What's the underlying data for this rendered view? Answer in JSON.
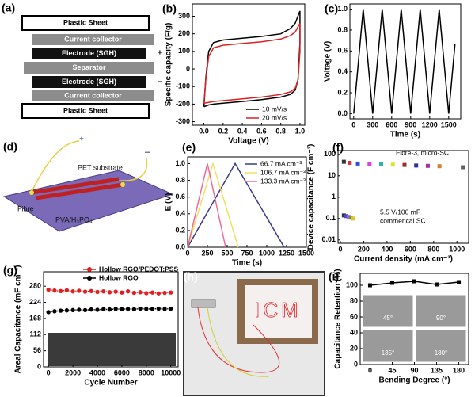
{
  "chart_data": [
    {
      "type": "line",
      "label": "(b)",
      "xlabel": "Voltage (V)",
      "ylabel": "Specific capacity (F/g)",
      "xlim": [
        -0.12,
        1.05
      ],
      "ylim": [
        -320,
        370
      ],
      "xticks": [
        {
          "value": 0,
          "label": "0.0"
        },
        {
          "value": 0.2,
          "label": "0.2"
        },
        {
          "value": 0.4,
          "label": "0.4"
        },
        {
          "value": 0.6,
          "label": "0.6"
        },
        {
          "value": 0.8,
          "label": "0.8"
        },
        {
          "value": 1,
          "label": "1.0"
        }
      ],
      "yticks": [
        -300,
        -200,
        -100,
        0,
        100,
        200,
        300
      ],
      "legend": "lower right",
      "series": [
        {
          "name": "10 mV/s",
          "color": "#000000",
          "x": [
            0,
            0.02,
            0.05,
            0.1,
            0.2,
            0.4,
            0.6,
            0.8,
            0.9,
            0.95,
            1.0,
            1.0,
            0.98,
            0.95,
            0.9,
            0.8,
            0.6,
            0.4,
            0.2,
            0.1,
            0.05,
            0
          ],
          "values": [
            -215,
            -50,
            100,
            150,
            165,
            175,
            185,
            200,
            230,
            260,
            330,
            150,
            -60,
            -120,
            -145,
            -160,
            -175,
            -185,
            -195,
            -200,
            -205,
            -215
          ]
        },
        {
          "name": "20 mV/s",
          "color": "#e02020",
          "x": [
            0,
            0.02,
            0.05,
            0.1,
            0.2,
            0.4,
            0.6,
            0.8,
            0.9,
            0.95,
            1.0,
            1.0,
            0.98,
            0.95,
            0.9,
            0.8,
            0.6,
            0.4,
            0.2,
            0.1,
            0.05,
            0
          ],
          "values": [
            -195,
            -60,
            70,
            120,
            135,
            145,
            155,
            170,
            190,
            210,
            260,
            100,
            -60,
            -110,
            -130,
            -145,
            -160,
            -170,
            -180,
            -185,
            -190,
            -195
          ]
        }
      ]
    },
    {
      "type": "line",
      "label": "(c)",
      "xlabel": "Time (s)",
      "ylabel": "Voltage (V)",
      "xlim": [
        -60,
        1690
      ],
      "ylim": [
        -0.05,
        1.05
      ],
      "xticks": [
        0,
        300,
        600,
        900,
        1200,
        1500
      ],
      "yticks": [
        {
          "value": 0,
          "label": "0.0"
        },
        {
          "value": 0.2,
          "label": "0.2"
        },
        {
          "value": 0.4,
          "label": "0.4"
        },
        {
          "value": 0.6,
          "label": "0.6"
        },
        {
          "value": 0.8,
          "label": "0.8"
        },
        {
          "value": 1,
          "label": "1.0"
        }
      ],
      "series": [
        {
          "color": "#000000",
          "x": [
            0,
            150,
            300,
            450,
            600,
            750,
            900,
            1050,
            1200,
            1350,
            1500,
            1600
          ],
          "values": [
            0,
            1,
            0,
            1,
            0,
            1,
            0,
            1,
            0,
            1,
            0,
            0.67
          ]
        }
      ]
    },
    {
      "type": "line",
      "label": "(e)",
      "xlabel": "Time (s)",
      "ylabel": "E (V)",
      "xlim": [
        0,
        1500
      ],
      "ylim": [
        0,
        1.08
      ],
      "xticks": [
        0,
        250,
        500,
        750,
        1000,
        1250,
        1500
      ],
      "yticks": [
        {
          "value": 0,
          "label": "0.0"
        },
        {
          "value": 0.2,
          "label": "0.2"
        },
        {
          "value": 0.4,
          "label": "0.4"
        },
        {
          "value": 0.6,
          "label": "0.6"
        },
        {
          "value": 0.8,
          "label": "0.8"
        },
        {
          "value": 1,
          "label": "1.0"
        }
      ],
      "legend": "upper right",
      "series": [
        {
          "name": "66.7 mA cm⁻³",
          "color": "#3a3a8c",
          "x": [
            0,
            600,
            1220
          ],
          "values": [
            0,
            1,
            0
          ]
        },
        {
          "name": "106.7 mA cm⁻³",
          "color": "#f0e060",
          "x": [
            0,
            320,
            640
          ],
          "values": [
            0,
            1,
            0
          ]
        },
        {
          "name": "133.3 mA cm⁻³",
          "color": "#f06a9a",
          "x": [
            0,
            250,
            480
          ],
          "values": [
            0,
            1,
            0
          ]
        }
      ]
    },
    {
      "type": "scatter",
      "label": "(f)",
      "xlabel": "Current density (mA cm⁻³)",
      "ylabel": "Device capacitance (F cm⁻³)",
      "xlim": [
        -20,
        1100
      ],
      "ylim": [
        0.007,
        150
      ],
      "ylog": true,
      "xticks": [
        0,
        200,
        400,
        600,
        800,
        1000
      ],
      "yticks": [
        0.01,
        0.1,
        1,
        10,
        100
      ],
      "annotations": [
        "Fibre-3, micro-SC",
        "5.5 V/100 mF",
        "commerical SC"
      ],
      "series": [
        {
          "color": "#333333",
          "colors": [
            "#333333",
            "#e03030",
            "#3050d0",
            "#e040e0",
            "#30b0b0",
            "#e0e030",
            "#903030",
            "#303090",
            "#a030a0",
            "#d08030",
            "#606060"
          ],
          "x": [
            30,
            80,
            150,
            250,
            350,
            450,
            550,
            650,
            750,
            850,
            1050
          ],
          "values": [
            45,
            40,
            37,
            35,
            34,
            33,
            32,
            30,
            29,
            28,
            25
          ]
        },
        {
          "color": "#333333",
          "colors": [
            "#333333",
            "#3050d0",
            "#e040e0",
            "#30b030",
            "#e0c030"
          ],
          "x": [
            30,
            50,
            70,
            90,
            110
          ],
          "values": [
            0.14,
            0.13,
            0.12,
            0.11,
            0.1
          ]
        }
      ]
    },
    {
      "type": "line",
      "label": "(g)",
      "xlabel": "Cycle Number",
      "ylabel": "Areal Capacitance (mF cm⁻²)",
      "xlim": [
        -400,
        10600
      ],
      "ylim": [
        0,
        330
      ],
      "marker": "o",
      "xticks": [
        0,
        2000,
        4000,
        6000,
        8000,
        10000
      ],
      "yticks": [
        0,
        56,
        112,
        168,
        224,
        280
      ],
      "legend": "upper center",
      "x": [
        0,
        500,
        1000,
        1500,
        2000,
        2500,
        3000,
        3500,
        4000,
        4500,
        5000,
        5500,
        6000,
        6500,
        7000,
        7500,
        8000,
        8500,
        9000,
        9500,
        10000
      ],
      "series": [
        {
          "name": "Hollow RGO/PEDOT:PSS",
          "color": "#e02020",
          "values": [
            268,
            265,
            263,
            266,
            262,
            264,
            261,
            263,
            260,
            262,
            259,
            261,
            258,
            262,
            257,
            259,
            256,
            258,
            255,
            257,
            258
          ]
        },
        {
          "name": "Hollow RGO",
          "color": "#000000",
          "values": [
            190,
            193,
            195,
            196,
            197,
            198,
            197,
            199,
            198,
            200,
            199,
            201,
            200,
            201,
            200,
            202,
            201,
            201,
            202,
            201,
            202
          ]
        }
      ]
    },
    {
      "type": "line",
      "label": "(i)",
      "xlabel": "Bending Degree (°)",
      "ylabel": "Capacitance Retention (%)",
      "xlim": [
        -20,
        200
      ],
      "ylim": [
        0,
        115
      ],
      "marker": "s",
      "xticks": [
        0,
        45,
        90,
        135,
        180
      ],
      "yticks": [
        0,
        20,
        40,
        60,
        80,
        100
      ],
      "annotations": [
        "45°",
        "90°",
        "135°",
        "180°"
      ],
      "series": [
        {
          "color": "#000000",
          "x": [
            0,
            45,
            90,
            135,
            180
          ],
          "values": [
            100,
            103,
            105,
            101,
            104
          ]
        }
      ]
    }
  ],
  "diagram_a": {
    "label": "(a)",
    "layers": [
      "Plastic Sheet",
      "Current collector",
      "Electrode (SGH)",
      "Separator",
      "Electrode (SGH)",
      "Current collector",
      "Plastic Sheet"
    ],
    "plus": "+",
    "minus": "–"
  },
  "diagram_d": {
    "label": "(d)",
    "plus": "+",
    "minus": "–",
    "substrate": "PET substrate",
    "fibre": "Fibre",
    "electrolyte": "PVA/H₃PO₄"
  },
  "photo_h": {
    "label": "(h)",
    "sign": "ICM"
  }
}
